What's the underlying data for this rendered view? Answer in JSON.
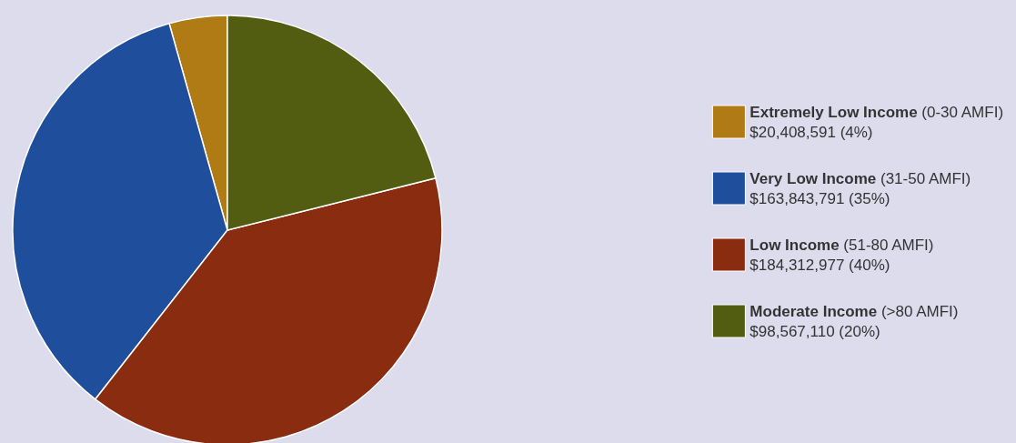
{
  "chart_data": {
    "type": "pie",
    "categories": [
      "Extremely Low Income (0-30 AMFI)",
      "Very Low Income (31-50 AMFI)",
      "Low Income (51-80 AMFI)",
      "Moderate Income (>80 AMFI)"
    ],
    "values": [
      20408591,
      163843791,
      184312977,
      98567110
    ],
    "value_labels": [
      "$20,408,591 (4%)",
      "$163,843,791 (35%)",
      "$184,312,977 (40%)",
      "$98,567,110 (20%)"
    ],
    "colors": [
      "#b07a14",
      "#1f4f9c",
      "#8a2c10",
      "#535d12"
    ],
    "legend": "right"
  }
}
